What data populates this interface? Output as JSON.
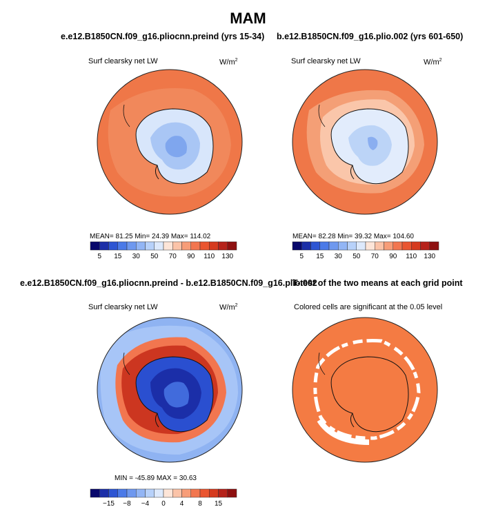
{
  "figure": {
    "title": "MAM"
  },
  "panels": [
    {
      "title": "e.e12.B1850CN.f09_g16.pliocnn.preind (yrs 15-34)",
      "variable": "Surf clearsky net LW",
      "units": "W/m",
      "units_sup": "2",
      "stats": "MEAN=  81.25  Min=  24.39  Max= 114.02"
    },
    {
      "title": "b.e12.B1850CN.f09_g16.plio.002 (yrs 601-650)",
      "variable": "Surf clearsky net LW",
      "units": "W/m",
      "units_sup": "2",
      "stats": "MEAN=  82.28  Min=  39.32  Max= 104.60"
    },
    {
      "title": "e.e12.B1850CN.f09_g16.pliocnn.preind - b.e12.B1850CN.f09_g16.plio.002",
      "title_overlap": "T-test of the two means at each grid point",
      "variable": "Surf clearsky net LW",
      "units": "W/m",
      "units_sup": "2",
      "stats": "MIN = -45.89  MAX =  30.63"
    },
    {
      "title": "T-test of the two means at each grid point",
      "variable": "Colored cells are significant at the 0.05 level"
    }
  ],
  "colorbars": [
    {
      "labels": [
        "5",
        "15",
        "30",
        "50",
        "70",
        "90",
        "110",
        "130"
      ],
      "colors": [
        "#08086b",
        "#1b2ea8",
        "#2d55d3",
        "#4b7ae8",
        "#6e98ef",
        "#92b5f5",
        "#b7d1fa",
        "#dde9fc",
        "#fde5d8",
        "#fbc3a8",
        "#f79d78",
        "#f2764f",
        "#ea5530",
        "#d63a1e",
        "#b6221a",
        "#8e1010"
      ]
    },
    {
      "labels": [
        "5",
        "15",
        "30",
        "50",
        "70",
        "90",
        "110",
        "130"
      ],
      "colors": [
        "#08086b",
        "#1b2ea8",
        "#2d55d3",
        "#4b7ae8",
        "#6e98ef",
        "#92b5f5",
        "#b7d1fa",
        "#dde9fc",
        "#fde5d8",
        "#fbc3a8",
        "#f79d78",
        "#f2764f",
        "#ea5530",
        "#d63a1e",
        "#b6221a",
        "#8e1010"
      ]
    },
    {
      "labels": [
        "−15",
        "−8",
        "−4",
        "0",
        "4",
        "8",
        "15"
      ],
      "colors": [
        "#08086b",
        "#1b2ea8",
        "#2d55d3",
        "#4b7ae8",
        "#6e98ef",
        "#92b5f5",
        "#b7d1fa",
        "#dde9fc",
        "#fde5d8",
        "#fbc3a8",
        "#f79d78",
        "#f2764f",
        "#ea5530",
        "#d63a1e",
        "#b6221a",
        "#8e1010"
      ]
    }
  ],
  "map_colors": {
    "ocean_warm": "#ef7748",
    "ocean_mid": "#f49a6e",
    "ice_light": "#d8e6fb",
    "ice_blue": "#a9c6f5",
    "ice_deep": "#7fa6ee",
    "diff_ocean": "#8fb3f2",
    "diff_ring": "#cc3620",
    "diff_ice": "#2a4fd0",
    "ttest": "#f47b43"
  }
}
